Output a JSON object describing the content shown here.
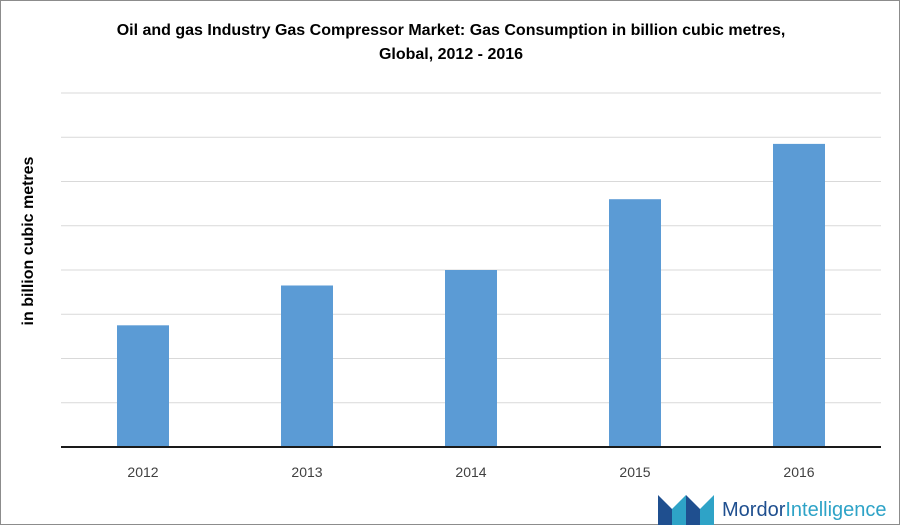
{
  "chart_data": {
    "type": "bar",
    "title": "Oil and gas Industry Gas Compressor Market: Gas Consumption in billion cubic metres, Global, 2012 - 2016",
    "xlabel": "",
    "ylabel": "in billion cubic metres",
    "categories": [
      "2012",
      "2013",
      "2014",
      "2015",
      "2016"
    ],
    "values": [
      2.75,
      3.65,
      4.0,
      5.6,
      6.85
    ],
    "ylim": [
      0,
      8
    ],
    "grid": true,
    "legend": "none",
    "bar_color": "#5b9bd5"
  },
  "branding": {
    "logo_word1": "Mordor",
    "logo_word2": "Intelligence",
    "colors": {
      "dark": "#1f4f8f",
      "light": "#2ea3c7"
    }
  }
}
